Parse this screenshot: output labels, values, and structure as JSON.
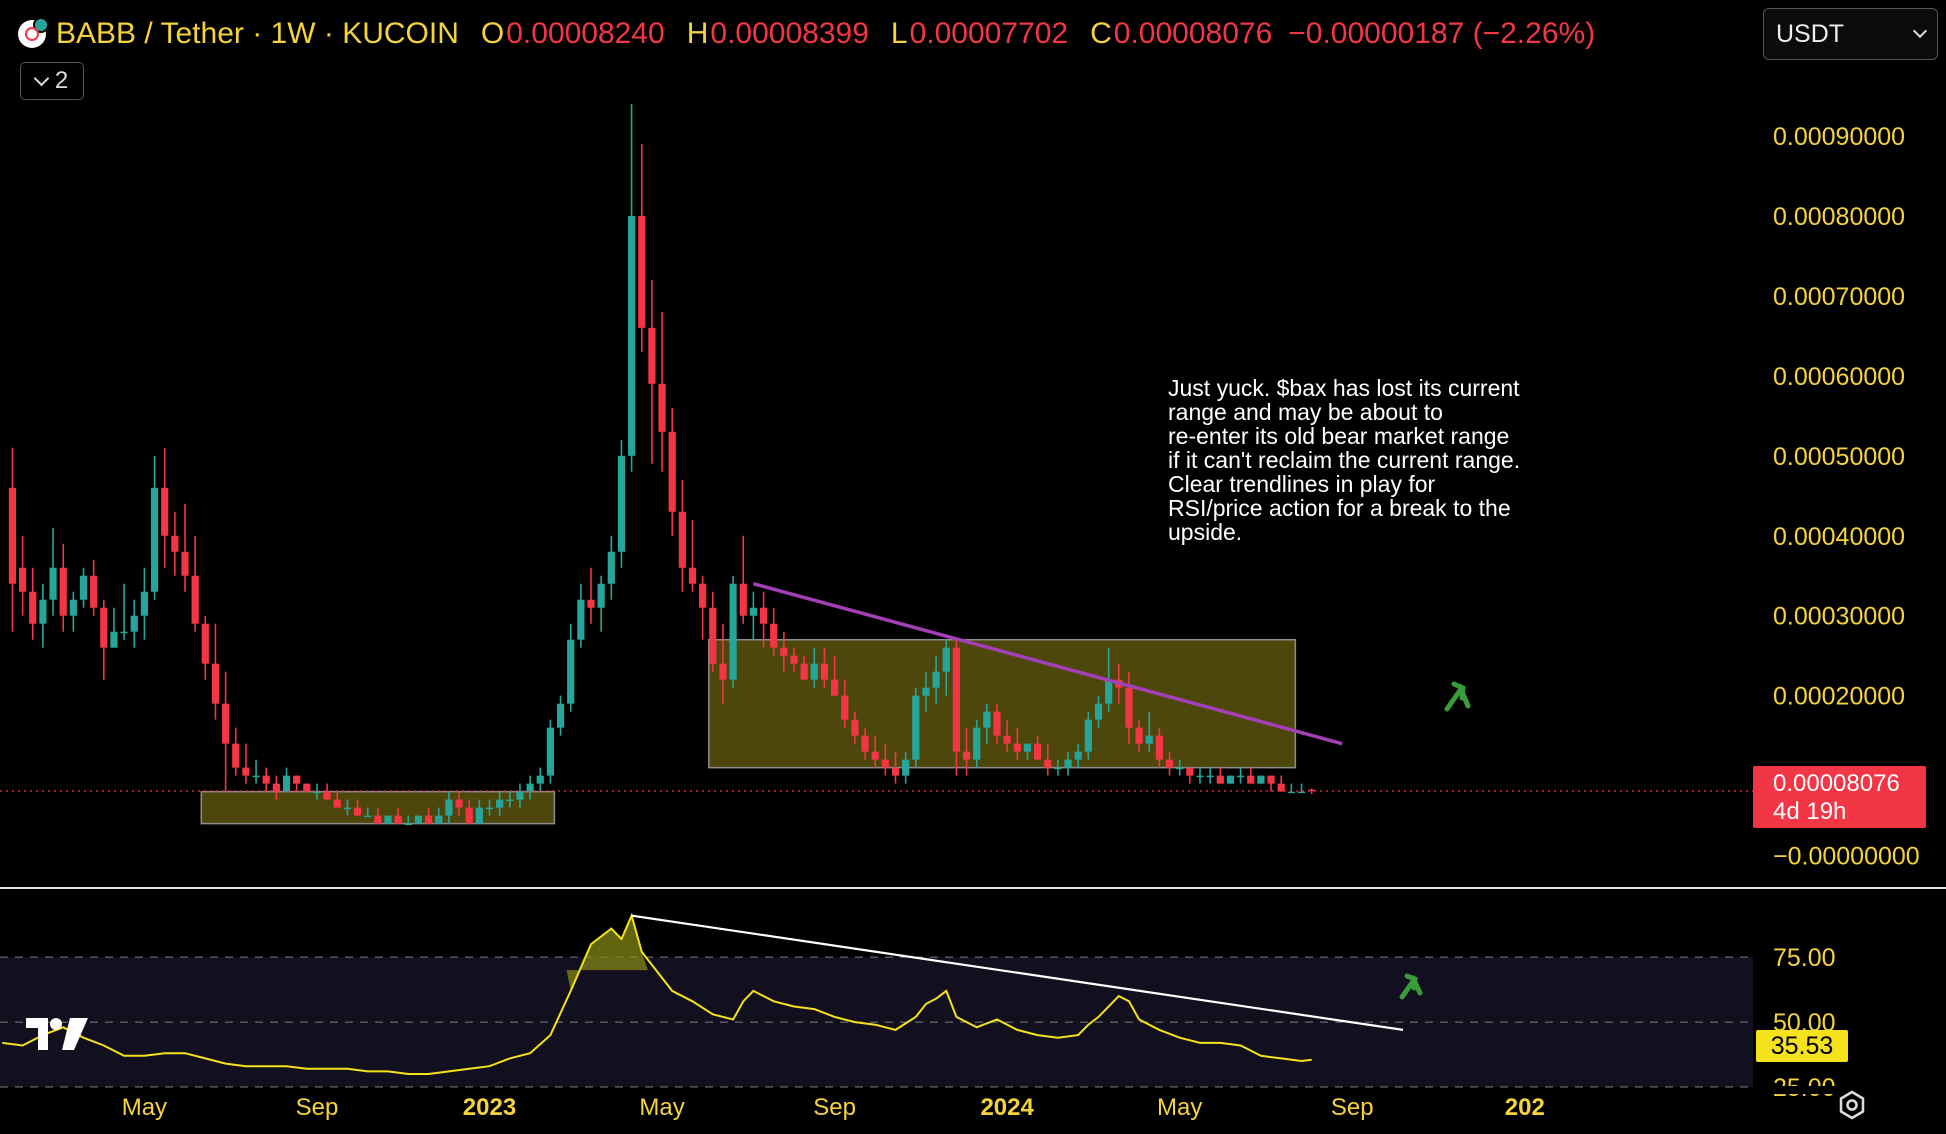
{
  "header": {
    "symbol": "BABB / Tether · 1W · KUCOIN",
    "open_label": "O",
    "open": "0.00008240",
    "high_label": "H",
    "high": "0.00008399",
    "low_label": "L",
    "low": "0.00007702",
    "close_label": "C",
    "close": "0.00008076",
    "change": "−0.00000187 (−2.26%)"
  },
  "indicator_toggle": {
    "label": "2"
  },
  "currency_select": {
    "value": "USDT"
  },
  "annotation": "Just yuck. $bax has lost its current\nrange and may be about to\nre-enter its old bear market range\nif it can't reclaim the current range.\nClear trendlines in play for\nRSI/price action for a break to the\nupside.",
  "price_marker": {
    "price": "0.00008076",
    "countdown": "4d 19h"
  },
  "rsi_marker": {
    "value": "35.53"
  },
  "colors": {
    "up": "#26a69a",
    "down": "#f23645",
    "axis_text": "#f5d33c",
    "trendline": "#a33fb7",
    "range_box": "#6b6210",
    "rsi_line": "#f5e11c",
    "rsi_trend": "#ffffff",
    "arrow": "#3a9b3a"
  },
  "chart_data": {
    "type": "candlestick",
    "timeframe": "1W",
    "price_axis": {
      "ticks": [
        "0.00090000",
        "0.00080000",
        "0.00070000",
        "0.00060000",
        "0.00050000",
        "0.00040000",
        "0.00030000",
        "0.00020000",
        "0.00010000",
        "−0.00000000"
      ],
      "tick_values": [
        0.0009,
        0.0008,
        0.0007,
        0.0006,
        0.0005,
        0.0004,
        0.0003,
        0.0002,
        0.0001,
        0
      ],
      "range": [
        -8e-06,
        0.00097
      ]
    },
    "time_axis": {
      "ticks": [
        "May",
        "Sep",
        "2023",
        "May",
        "Sep",
        "2024",
        "May",
        "Sep",
        "202"
      ],
      "bold": [
        false,
        false,
        true,
        false,
        false,
        true,
        false,
        false,
        true
      ],
      "tick_weeks": [
        -4,
        13,
        30,
        47,
        64,
        81,
        98,
        115,
        132
      ]
    },
    "candles": [
      [
        -17,
        0.00046,
        0.00051,
        0.00028,
        0.00034
      ],
      [
        -16,
        0.00036,
        0.0004,
        0.0003,
        0.00033
      ],
      [
        -15,
        0.00033,
        0.00036,
        0.00027,
        0.00029
      ],
      [
        -14,
        0.00029,
        0.00034,
        0.00026,
        0.00032
      ],
      [
        -13,
        0.00032,
        0.00041,
        0.0003,
        0.00036
      ],
      [
        -12,
        0.00036,
        0.00039,
        0.00028,
        0.0003
      ],
      [
        -11,
        0.0003,
        0.00033,
        0.00028,
        0.00032
      ],
      [
        -10,
        0.00032,
        0.00036,
        0.00031,
        0.00035
      ],
      [
        -9,
        0.00035,
        0.00037,
        0.0003,
        0.00031
      ],
      [
        -8,
        0.00031,
        0.00032,
        0.00022,
        0.00026
      ],
      [
        -7,
        0.00026,
        0.00031,
        0.00026,
        0.00028
      ],
      [
        -6,
        0.00028,
        0.00034,
        0.00027,
        0.00028
      ],
      [
        -5,
        0.00028,
        0.00032,
        0.00026,
        0.0003
      ],
      [
        -4,
        0.0003,
        0.00036,
        0.00027,
        0.00033
      ],
      [
        -3,
        0.00033,
        0.0005,
        0.00032,
        0.00046
      ],
      [
        -2,
        0.00046,
        0.00051,
        0.00036,
        0.0004
      ],
      [
        -1,
        0.0004,
        0.00043,
        0.00035,
        0.00038
      ],
      [
        0,
        0.00038,
        0.00044,
        0.00033,
        0.00035
      ],
      [
        1,
        0.00035,
        0.0004,
        0.00028,
        0.00029
      ],
      [
        2,
        0.00029,
        0.0003,
        0.00022,
        0.00024
      ],
      [
        3,
        0.00024,
        0.00029,
        0.00017,
        0.00019
      ],
      [
        4,
        0.00019,
        0.00023,
        8e-05,
        0.00014
      ],
      [
        5,
        0.00014,
        0.00016,
        0.0001,
        0.00011
      ],
      [
        6,
        0.00011,
        0.00014,
        9e-05,
        0.0001
      ],
      [
        7,
        0.0001,
        0.00012,
        9e-05,
        0.0001
      ],
      [
        8,
        0.0001,
        0.00011,
        8e-05,
        9e-05
      ],
      [
        9,
        9e-05,
        0.0001,
        7e-05,
        8e-05
      ],
      [
        10,
        8e-05,
        0.00011,
        8e-05,
        0.0001
      ],
      [
        11,
        0.0001,
        0.0001,
        8e-05,
        9e-05
      ],
      [
        12,
        9e-05,
        9e-05,
        8e-05,
        8e-05
      ],
      [
        13,
        8e-05,
        9e-05,
        7e-05,
        8e-05
      ],
      [
        14,
        8e-05,
        9e-05,
        7e-05,
        7e-05
      ],
      [
        15,
        7e-05,
        8e-05,
        6e-05,
        6e-05
      ],
      [
        16,
        6e-05,
        7e-05,
        5e-05,
        6e-05
      ],
      [
        17,
        6e-05,
        7e-05,
        5e-05,
        5e-05
      ],
      [
        18,
        5e-05,
        6e-05,
        5e-05,
        5e-05
      ],
      [
        19,
        5e-05,
        6e-05,
        4e-05,
        4e-05
      ],
      [
        20,
        4e-05,
        5e-05,
        4e-05,
        5e-05
      ],
      [
        21,
        5e-05,
        6e-05,
        4e-05,
        4e-05
      ],
      [
        22,
        4e-05,
        5e-05,
        4e-05,
        4e-05
      ],
      [
        23,
        4e-05,
        5e-05,
        4e-05,
        5e-05
      ],
      [
        24,
        5e-05,
        6e-05,
        4e-05,
        4e-05
      ],
      [
        25,
        4e-05,
        6e-05,
        4e-05,
        5e-05
      ],
      [
        26,
        5e-05,
        8e-05,
        4e-05,
        7e-05
      ],
      [
        27,
        7e-05,
        8e-05,
        5e-05,
        6e-05
      ],
      [
        28,
        6e-05,
        7e-05,
        4e-05,
        4e-05
      ],
      [
        29,
        4e-05,
        7e-05,
        4e-05,
        6e-05
      ],
      [
        30,
        6e-05,
        7e-05,
        5e-05,
        6e-05
      ],
      [
        31,
        6e-05,
        8e-05,
        5e-05,
        7e-05
      ],
      [
        32,
        7e-05,
        8e-05,
        6e-05,
        7e-05
      ],
      [
        33,
        7e-05,
        9e-05,
        6e-05,
        8e-05
      ],
      [
        34,
        8e-05,
        0.0001,
        7e-05,
        9e-05
      ],
      [
        35,
        9e-05,
        0.00011,
        8e-05,
        0.0001
      ],
      [
        36,
        0.0001,
        0.00017,
        9e-05,
        0.00016
      ],
      [
        37,
        0.00016,
        0.0002,
        0.00015,
        0.00019
      ],
      [
        38,
        0.00019,
        0.00029,
        0.00018,
        0.00027
      ],
      [
        39,
        0.00027,
        0.00034,
        0.00026,
        0.00032
      ],
      [
        40,
        0.00032,
        0.00036,
        0.00029,
        0.00031
      ],
      [
        41,
        0.00031,
        0.00035,
        0.00028,
        0.00034
      ],
      [
        42,
        0.00034,
        0.0004,
        0.00032,
        0.00038
      ],
      [
        43,
        0.00038,
        0.00052,
        0.00036,
        0.0005
      ],
      [
        44,
        0.0005,
        0.00094,
        0.00048,
        0.0008
      ],
      [
        45,
        0.0008,
        0.00089,
        0.00063,
        0.00066
      ],
      [
        46,
        0.00066,
        0.00072,
        0.00049,
        0.00059
      ],
      [
        47,
        0.00059,
        0.00068,
        0.00048,
        0.00053
      ],
      [
        48,
        0.00053,
        0.00056,
        0.0004,
        0.00043
      ],
      [
        49,
        0.00043,
        0.00047,
        0.00033,
        0.00036
      ],
      [
        50,
        0.00036,
        0.00042,
        0.00033,
        0.00034
      ],
      [
        51,
        0.00034,
        0.00035,
        0.00027,
        0.00031
      ],
      [
        52,
        0.00031,
        0.00033,
        0.00023,
        0.00024
      ],
      [
        53,
        0.00024,
        0.00029,
        0.00019,
        0.00022
      ],
      [
        54,
        0.00022,
        0.00035,
        0.00021,
        0.00034
      ],
      [
        55,
        0.00034,
        0.0004,
        0.00029,
        0.0003
      ],
      [
        56,
        0.0003,
        0.00033,
        0.00027,
        0.00031
      ],
      [
        57,
        0.00031,
        0.00033,
        0.00026,
        0.00029
      ],
      [
        58,
        0.00029,
        0.00031,
        0.00025,
        0.00026
      ],
      [
        59,
        0.00026,
        0.00028,
        0.00023,
        0.00025
      ],
      [
        60,
        0.00025,
        0.00026,
        0.00023,
        0.00024
      ],
      [
        61,
        0.00024,
        0.00025,
        0.00022,
        0.00022
      ],
      [
        62,
        0.00022,
        0.00026,
        0.00021,
        0.00024
      ],
      [
        63,
        0.00024,
        0.00026,
        0.00021,
        0.00022
      ],
      [
        64,
        0.00022,
        0.00025,
        0.0002,
        0.0002
      ],
      [
        65,
        0.0002,
        0.00022,
        0.00016,
        0.00017
      ],
      [
        66,
        0.00017,
        0.00018,
        0.00014,
        0.00015
      ],
      [
        67,
        0.00015,
        0.00016,
        0.00012,
        0.00013
      ],
      [
        68,
        0.00013,
        0.00015,
        0.00011,
        0.00012
      ],
      [
        69,
        0.00012,
        0.00014,
        0.0001,
        0.00011
      ],
      [
        70,
        0.00011,
        0.00013,
        9e-05,
        0.0001
      ],
      [
        71,
        0.0001,
        0.00013,
        9e-05,
        0.00012
      ],
      [
        72,
        0.00012,
        0.00021,
        0.00011,
        0.0002
      ],
      [
        73,
        0.0002,
        0.00023,
        0.00018,
        0.00021
      ],
      [
        74,
        0.00021,
        0.00025,
        0.00019,
        0.00023
      ],
      [
        75,
        0.00023,
        0.00027,
        0.0002,
        0.00026
      ],
      [
        76,
        0.00026,
        0.00027,
        0.0001,
        0.00013
      ],
      [
        77,
        0.00013,
        0.00016,
        0.0001,
        0.00012
      ],
      [
        78,
        0.00012,
        0.00017,
        0.00011,
        0.00016
      ],
      [
        79,
        0.00016,
        0.00019,
        0.00014,
        0.00018
      ],
      [
        80,
        0.00018,
        0.00019,
        0.00014,
        0.00015
      ],
      [
        81,
        0.00015,
        0.00017,
        0.00013,
        0.00014
      ],
      [
        82,
        0.00014,
        0.00016,
        0.00012,
        0.00013
      ],
      [
        83,
        0.00013,
        0.00014,
        0.00012,
        0.00014
      ],
      [
        84,
        0.00014,
        0.00015,
        0.00012,
        0.00012
      ],
      [
        85,
        0.00012,
        0.00014,
        0.0001,
        0.00011
      ],
      [
        86,
        0.00011,
        0.00012,
        0.0001,
        0.00011
      ],
      [
        87,
        0.00011,
        0.00013,
        0.0001,
        0.00012
      ],
      [
        88,
        0.00012,
        0.00014,
        0.00011,
        0.00013
      ],
      [
        89,
        0.00013,
        0.00018,
        0.00012,
        0.00017
      ],
      [
        90,
        0.00017,
        0.0002,
        0.00016,
        0.00019
      ],
      [
        91,
        0.00019,
        0.00026,
        0.00018,
        0.00022
      ],
      [
        92,
        0.00022,
        0.00024,
        0.00019,
        0.00021
      ],
      [
        93,
        0.00021,
        0.00023,
        0.00014,
        0.00016
      ],
      [
        94,
        0.00016,
        0.00017,
        0.00013,
        0.00014
      ],
      [
        95,
        0.00014,
        0.00018,
        0.00013,
        0.00015
      ],
      [
        96,
        0.00015,
        0.00016,
        0.00011,
        0.00012
      ],
      [
        97,
        0.00012,
        0.00013,
        0.0001,
        0.00011
      ],
      [
        98,
        0.00011,
        0.00012,
        0.0001,
        0.00011
      ],
      [
        99,
        0.00011,
        0.00011,
        9e-05,
        0.0001
      ],
      [
        100,
        0.0001,
        0.00011,
        9e-05,
        0.0001
      ],
      [
        101,
        0.0001,
        0.00011,
        9e-05,
        0.0001
      ],
      [
        102,
        0.0001,
        0.00011,
        9e-05,
        9e-05
      ],
      [
        103,
        9e-05,
        0.0001,
        9e-05,
        0.0001
      ],
      [
        104,
        0.0001,
        0.00011,
        9e-05,
        0.0001
      ],
      [
        105,
        0.0001,
        0.00011,
        9e-05,
        9e-05
      ],
      [
        106,
        9e-05,
        0.0001,
        9e-05,
        0.0001
      ],
      [
        107,
        0.0001,
        0.0001,
        8e-05,
        9e-05
      ],
      [
        108,
        9e-05,
        0.0001,
        8e-05,
        8e-05
      ],
      [
        109,
        8e-05,
        9e-05,
        8e-05,
        8e-05
      ],
      [
        110,
        8e-05,
        9e-05,
        8e-05,
        8e-05
      ],
      [
        111,
        8.24e-05,
        8.399e-05,
        7.702e-05,
        8.076e-05
      ]
    ],
    "current_price": 8.076e-05,
    "ranges": [
      {
        "from_week": 2,
        "to_week": 36,
        "low": 4e-05,
        "high": 8e-05
      },
      {
        "from_week": 52,
        "to_week": 109,
        "low": 0.00011,
        "high": 0.00027
      }
    ],
    "trendline": {
      "from": [
        56,
        0.00034
      ],
      "to": [
        114,
        0.00014
      ]
    },
    "rsi": {
      "ticks": [
        "75.00",
        "50.00",
        "25.00"
      ],
      "tick_values": [
        75,
        50,
        25
      ],
      "range": [
        20,
        97
      ],
      "values": [
        [
          -18,
          42
        ],
        [
          -16,
          41
        ],
        [
          -14,
          45
        ],
        [
          -12,
          48
        ],
        [
          -10,
          44
        ],
        [
          -8,
          41
        ],
        [
          -6,
          37
        ],
        [
          -4,
          37
        ],
        [
          -2,
          38
        ],
        [
          0,
          38
        ],
        [
          2,
          36
        ],
        [
          4,
          34
        ],
        [
          6,
          33
        ],
        [
          8,
          33
        ],
        [
          10,
          33
        ],
        [
          12,
          32
        ],
        [
          14,
          32
        ],
        [
          16,
          32
        ],
        [
          18,
          31
        ],
        [
          20,
          31
        ],
        [
          22,
          30
        ],
        [
          24,
          30
        ],
        [
          26,
          31
        ],
        [
          28,
          32
        ],
        [
          30,
          33
        ],
        [
          32,
          36
        ],
        [
          34,
          38
        ],
        [
          36,
          45
        ],
        [
          38,
          62
        ],
        [
          40,
          80
        ],
        [
          42,
          86
        ],
        [
          43,
          82
        ],
        [
          44,
          91
        ],
        [
          45,
          77
        ],
        [
          46,
          72
        ],
        [
          48,
          62
        ],
        [
          50,
          58
        ],
        [
          52,
          53
        ],
        [
          54,
          51
        ],
        [
          55,
          58
        ],
        [
          56,
          62
        ],
        [
          58,
          58
        ],
        [
          60,
          56
        ],
        [
          62,
          55
        ],
        [
          64,
          52
        ],
        [
          66,
          50
        ],
        [
          68,
          49
        ],
        [
          70,
          47
        ],
        [
          72,
          52
        ],
        [
          73,
          57
        ],
        [
          74,
          59
        ],
        [
          75,
          62
        ],
        [
          76,
          52
        ],
        [
          78,
          48
        ],
        [
          80,
          51
        ],
        [
          82,
          47
        ],
        [
          84,
          45
        ],
        [
          86,
          44
        ],
        [
          88,
          45
        ],
        [
          89,
          49
        ],
        [
          90,
          52
        ],
        [
          92,
          60
        ],
        [
          93,
          58
        ],
        [
          94,
          51
        ],
        [
          96,
          47
        ],
        [
          98,
          44
        ],
        [
          100,
          42
        ],
        [
          102,
          42
        ],
        [
          104,
          41
        ],
        [
          105,
          39
        ],
        [
          106,
          37
        ],
        [
          108,
          36
        ],
        [
          110,
          35
        ],
        [
          111,
          35.53
        ]
      ],
      "trendline": {
        "from": [
          44,
          91
        ],
        "to": [
          120,
          47
        ]
      }
    }
  }
}
